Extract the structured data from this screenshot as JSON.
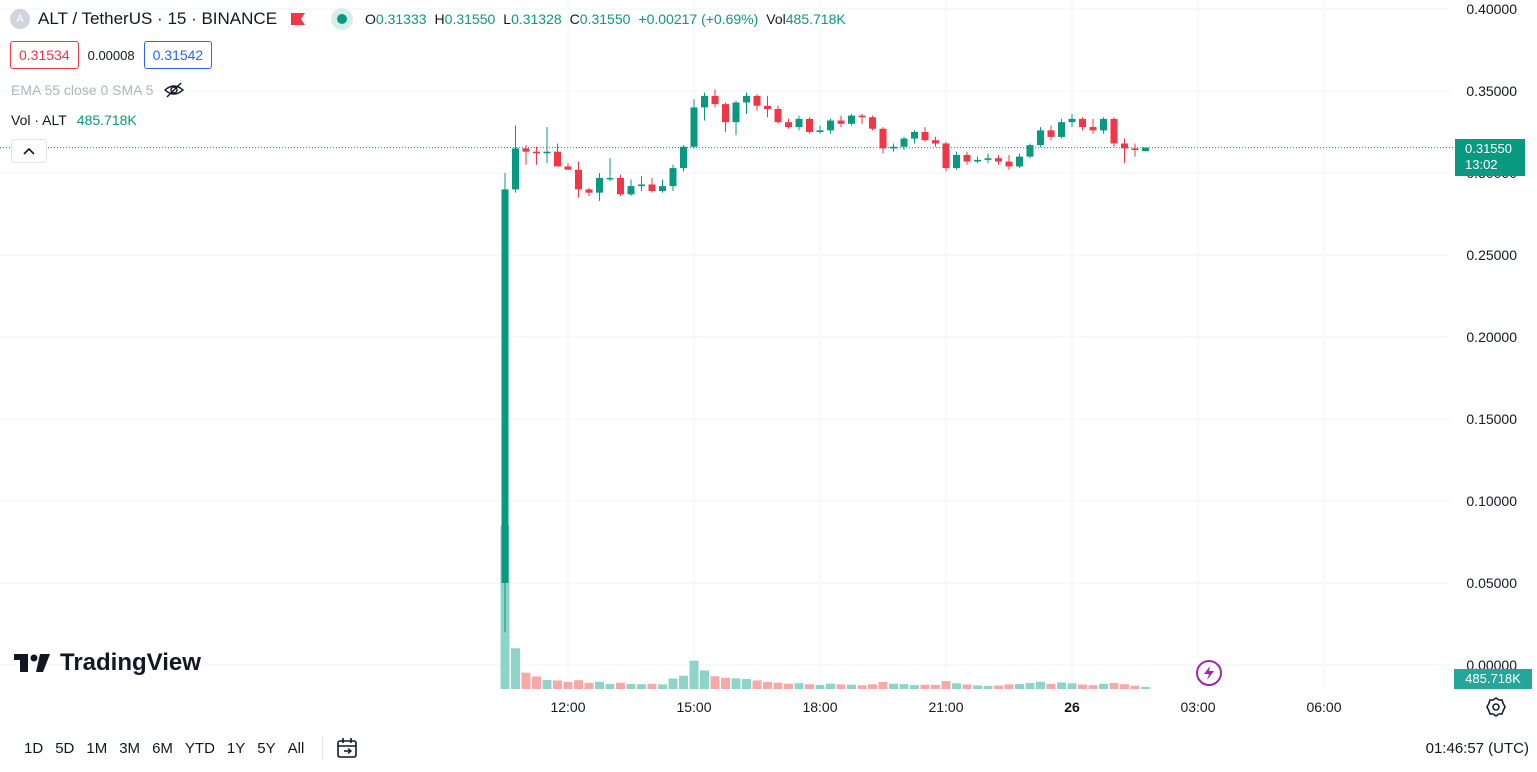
{
  "header": {
    "symbol_letter": "A",
    "title": "ALT / TetherUS · 15 · BINANCE",
    "ohlc": {
      "o_label": "O",
      "o": "0.31333",
      "h_label": "H",
      "h": "0.31550",
      "l_label": "L",
      "l": "0.31328",
      "c_label": "C",
      "c": "0.31550",
      "change": "+0.00217 (+0.69%)",
      "vol_label": "Vol",
      "vol": "485.718K"
    },
    "bid": "0.31534",
    "spread": "0.00008",
    "ask": "0.31542",
    "indicator": "EMA 55 close 0 SMA 5",
    "volume_label": "Vol · ALT",
    "volume_value": "485.718K"
  },
  "price_tag": {
    "price": "0.31550",
    "countdown": "13:02"
  },
  "volume_tag": "485.718K",
  "brand": "TradingView",
  "bottom": {
    "timeframes": [
      "1D",
      "5D",
      "1M",
      "3M",
      "6M",
      "YTD",
      "1Y",
      "5Y",
      "All"
    ],
    "clock": "01:46:57 (UTC)"
  },
  "colors": {
    "up": "#089981",
    "down": "#f23645",
    "vol_up": "#8fd4c8",
    "vol_down": "#f7a9a7"
  },
  "chart_data": {
    "type": "candlestick",
    "interval_minutes": 15,
    "y_ticks": [
      "0.40000",
      "0.35000",
      "0.30000",
      "0.25000",
      "0.20000",
      "0.15000",
      "0.10000",
      "0.05000",
      "0.00000"
    ],
    "ylim": [
      0,
      0.4
    ],
    "x_ticks": [
      {
        "label": "12:00",
        "t": "2024-07-25T12:00"
      },
      {
        "label": "15:00",
        "t": "2024-07-25T15:00"
      },
      {
        "label": "18:00",
        "t": "2024-07-25T18:00"
      },
      {
        "label": "21:00",
        "t": "2024-07-25T21:00"
      },
      {
        "label": "26",
        "t": "2024-07-26T00:00",
        "bold": true
      },
      {
        "label": "03:00",
        "t": "2024-07-26T03:00"
      },
      {
        "label": "06:00",
        "t": "2024-07-26T06:00"
      }
    ],
    "x_range": [
      "2024-07-25T10:00",
      "2024-07-26T07:00"
    ],
    "last_price": 0.3155,
    "candles": [
      {
        "t": "2024-07-25T10:30",
        "o": 0.05,
        "h": 0.3,
        "l": 0.02,
        "c": 0.29,
        "v": 0.95
      },
      {
        "t": "2024-07-25T10:45",
        "o": 0.29,
        "h": 0.329,
        "l": 0.288,
        "c": 0.315,
        "v": 0.237
      },
      {
        "t": "2024-07-25T11:00",
        "o": 0.315,
        "h": 0.317,
        "l": 0.305,
        "c": 0.313,
        "v": 0.095
      },
      {
        "t": "2024-07-25T11:15",
        "o": 0.313,
        "h": 0.316,
        "l": 0.305,
        "c": 0.312,
        "v": 0.073
      },
      {
        "t": "2024-07-25T11:30",
        "o": 0.312,
        "h": 0.328,
        "l": 0.306,
        "c": 0.313,
        "v": 0.052
      },
      {
        "t": "2024-07-25T11:45",
        "o": 0.313,
        "h": 0.318,
        "l": 0.305,
        "c": 0.304,
        "v": 0.049
      },
      {
        "t": "2024-07-25T12:00",
        "o": 0.304,
        "h": 0.306,
        "l": 0.302,
        "c": 0.302,
        "v": 0.041
      },
      {
        "t": "2024-07-25T12:15",
        "o": 0.302,
        "h": 0.307,
        "l": 0.285,
        "c": 0.29,
        "v": 0.051
      },
      {
        "t": "2024-07-25T12:30",
        "o": 0.29,
        "h": 0.291,
        "l": 0.286,
        "c": 0.288,
        "v": 0.036
      },
      {
        "t": "2024-07-25T12:45",
        "o": 0.288,
        "h": 0.3,
        "l": 0.283,
        "c": 0.297,
        "v": 0.041
      },
      {
        "t": "2024-07-25T13:00",
        "o": 0.297,
        "h": 0.309,
        "l": 0.295,
        "c": 0.297,
        "v": 0.029
      },
      {
        "t": "2024-07-25T13:15",
        "o": 0.297,
        "h": 0.299,
        "l": 0.286,
        "c": 0.287,
        "v": 0.036
      },
      {
        "t": "2024-07-25T13:30",
        "o": 0.287,
        "h": 0.296,
        "l": 0.286,
        "c": 0.292,
        "v": 0.029
      },
      {
        "t": "2024-07-25T13:45",
        "o": 0.292,
        "h": 0.298,
        "l": 0.289,
        "c": 0.293,
        "v": 0.028
      },
      {
        "t": "2024-07-25T14:00",
        "o": 0.293,
        "h": 0.297,
        "l": 0.288,
        "c": 0.289,
        "v": 0.03
      },
      {
        "t": "2024-07-25T14:15",
        "o": 0.289,
        "h": 0.296,
        "l": 0.288,
        "c": 0.292,
        "v": 0.027
      },
      {
        "t": "2024-07-25T14:30",
        "o": 0.292,
        "h": 0.305,
        "l": 0.289,
        "c": 0.303,
        "v": 0.061
      },
      {
        "t": "2024-07-25T14:45",
        "o": 0.303,
        "h": 0.317,
        "l": 0.301,
        "c": 0.316,
        "v": 0.077
      },
      {
        "t": "2024-07-25T15:00",
        "o": 0.316,
        "h": 0.345,
        "l": 0.315,
        "c": 0.34,
        "v": 0.165
      },
      {
        "t": "2024-07-25T15:15",
        "o": 0.34,
        "h": 0.349,
        "l": 0.332,
        "c": 0.347,
        "v": 0.108
      },
      {
        "t": "2024-07-25T15:30",
        "o": 0.347,
        "h": 0.351,
        "l": 0.34,
        "c": 0.342,
        "v": 0.074
      },
      {
        "t": "2024-07-25T15:45",
        "o": 0.342,
        "h": 0.343,
        "l": 0.325,
        "c": 0.331,
        "v": 0.065
      },
      {
        "t": "2024-07-25T16:00",
        "o": 0.331,
        "h": 0.344,
        "l": 0.323,
        "c": 0.343,
        "v": 0.062
      },
      {
        "t": "2024-07-25T16:15",
        "o": 0.343,
        "h": 0.349,
        "l": 0.336,
        "c": 0.347,
        "v": 0.058
      },
      {
        "t": "2024-07-25T16:30",
        "o": 0.347,
        "h": 0.348,
        "l": 0.338,
        "c": 0.341,
        "v": 0.05
      },
      {
        "t": "2024-07-25T16:45",
        "o": 0.341,
        "h": 0.347,
        "l": 0.334,
        "c": 0.339,
        "v": 0.041
      },
      {
        "t": "2024-07-25T17:00",
        "o": 0.339,
        "h": 0.341,
        "l": 0.33,
        "c": 0.331,
        "v": 0.037
      },
      {
        "t": "2024-07-25T17:15",
        "o": 0.331,
        "h": 0.333,
        "l": 0.327,
        "c": 0.328,
        "v": 0.031
      },
      {
        "t": "2024-07-25T17:30",
        "o": 0.328,
        "h": 0.335,
        "l": 0.326,
        "c": 0.333,
        "v": 0.034
      },
      {
        "t": "2024-07-25T17:45",
        "o": 0.333,
        "h": 0.334,
        "l": 0.324,
        "c": 0.325,
        "v": 0.028
      },
      {
        "t": "2024-07-25T18:00",
        "o": 0.325,
        "h": 0.329,
        "l": 0.324,
        "c": 0.326,
        "v": 0.024
      },
      {
        "t": "2024-07-25T18:15",
        "o": 0.326,
        "h": 0.333,
        "l": 0.324,
        "c": 0.332,
        "v": 0.031
      },
      {
        "t": "2024-07-25T18:30",
        "o": 0.332,
        "h": 0.335,
        "l": 0.328,
        "c": 0.33,
        "v": 0.027
      },
      {
        "t": "2024-07-25T18:45",
        "o": 0.33,
        "h": 0.336,
        "l": 0.329,
        "c": 0.335,
        "v": 0.025
      },
      {
        "t": "2024-07-25T19:00",
        "o": 0.335,
        "h": 0.336,
        "l": 0.33,
        "c": 0.334,
        "v": 0.022
      },
      {
        "t": "2024-07-25T19:15",
        "o": 0.334,
        "h": 0.335,
        "l": 0.326,
        "c": 0.327,
        "v": 0.027
      },
      {
        "t": "2024-07-25T19:30",
        "o": 0.327,
        "h": 0.328,
        "l": 0.312,
        "c": 0.315,
        "v": 0.041
      },
      {
        "t": "2024-07-25T19:45",
        "o": 0.315,
        "h": 0.318,
        "l": 0.313,
        "c": 0.316,
        "v": 0.031
      },
      {
        "t": "2024-07-25T20:00",
        "o": 0.316,
        "h": 0.322,
        "l": 0.314,
        "c": 0.321,
        "v": 0.028
      },
      {
        "t": "2024-07-25T20:15",
        "o": 0.321,
        "h": 0.326,
        "l": 0.318,
        "c": 0.325,
        "v": 0.023
      },
      {
        "t": "2024-07-25T20:30",
        "o": 0.325,
        "h": 0.328,
        "l": 0.319,
        "c": 0.32,
        "v": 0.025
      },
      {
        "t": "2024-07-25T20:45",
        "o": 0.32,
        "h": 0.322,
        "l": 0.316,
        "c": 0.318,
        "v": 0.024
      },
      {
        "t": "2024-07-25T21:00",
        "o": 0.318,
        "h": 0.319,
        "l": 0.301,
        "c": 0.303,
        "v": 0.046
      },
      {
        "t": "2024-07-25T21:15",
        "o": 0.303,
        "h": 0.313,
        "l": 0.302,
        "c": 0.311,
        "v": 0.033
      },
      {
        "t": "2024-07-25T21:30",
        "o": 0.311,
        "h": 0.313,
        "l": 0.305,
        "c": 0.307,
        "v": 0.026
      },
      {
        "t": "2024-07-25T21:45",
        "o": 0.307,
        "h": 0.31,
        "l": 0.306,
        "c": 0.308,
        "v": 0.021
      },
      {
        "t": "2024-07-25T22:00",
        "o": 0.308,
        "h": 0.312,
        "l": 0.306,
        "c": 0.309,
        "v": 0.018
      },
      {
        "t": "2024-07-25T22:15",
        "o": 0.309,
        "h": 0.311,
        "l": 0.305,
        "c": 0.307,
        "v": 0.02
      },
      {
        "t": "2024-07-25T22:30",
        "o": 0.307,
        "h": 0.311,
        "l": 0.302,
        "c": 0.304,
        "v": 0.027
      },
      {
        "t": "2024-07-25T22:45",
        "o": 0.304,
        "h": 0.312,
        "l": 0.303,
        "c": 0.31,
        "v": 0.029
      },
      {
        "t": "2024-07-25T23:00",
        "o": 0.31,
        "h": 0.318,
        "l": 0.309,
        "c": 0.317,
        "v": 0.035
      },
      {
        "t": "2024-07-25T23:15",
        "o": 0.317,
        "h": 0.328,
        "l": 0.316,
        "c": 0.326,
        "v": 0.042
      },
      {
        "t": "2024-07-25T23:30",
        "o": 0.326,
        "h": 0.329,
        "l": 0.32,
        "c": 0.322,
        "v": 0.03
      },
      {
        "t": "2024-07-25T23:45",
        "o": 0.322,
        "h": 0.333,
        "l": 0.321,
        "c": 0.331,
        "v": 0.038
      },
      {
        "t": "2024-07-26T00:00",
        "o": 0.331,
        "h": 0.336,
        "l": 0.328,
        "c": 0.333,
        "v": 0.033
      },
      {
        "t": "2024-07-26T00:15",
        "o": 0.333,
        "h": 0.334,
        "l": 0.326,
        "c": 0.328,
        "v": 0.026
      },
      {
        "t": "2024-07-26T00:30",
        "o": 0.328,
        "h": 0.333,
        "l": 0.324,
        "c": 0.326,
        "v": 0.022
      },
      {
        "t": "2024-07-26T00:45",
        "o": 0.326,
        "h": 0.334,
        "l": 0.324,
        "c": 0.333,
        "v": 0.03
      },
      {
        "t": "2024-07-26T01:00",
        "o": 0.333,
        "h": 0.334,
        "l": 0.316,
        "c": 0.318,
        "v": 0.035
      },
      {
        "t": "2024-07-26T01:15",
        "o": 0.318,
        "h": 0.321,
        "l": 0.306,
        "c": 0.315,
        "v": 0.028
      },
      {
        "t": "2024-07-26T01:30",
        "o": 0.315,
        "h": 0.318,
        "l": 0.31,
        "c": 0.314,
        "v": 0.019
      },
      {
        "t": "2024-07-26T01:45",
        "o": 0.3133,
        "h": 0.3155,
        "l": 0.3133,
        "c": 0.3155,
        "v": 0.012
      }
    ]
  }
}
